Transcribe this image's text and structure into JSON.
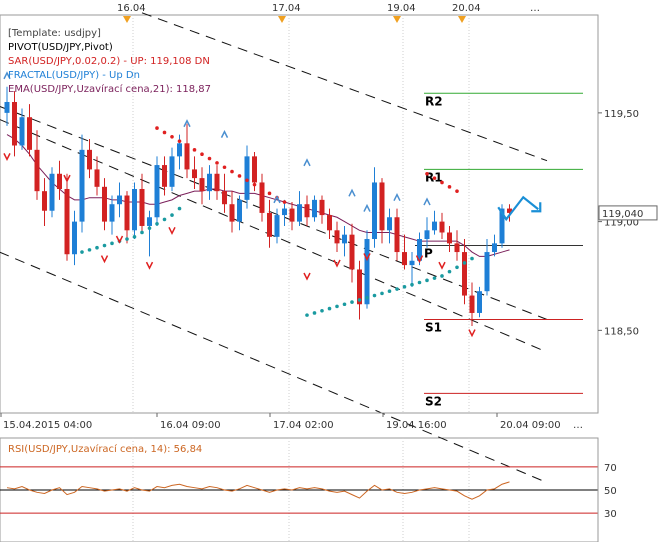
{
  "colors": {
    "up": "#1e7fd6",
    "down": "#d22222",
    "ema": "#7a1f5a",
    "sar": "#e02020",
    "sar_support": "#1a9aa0",
    "fractal_up": "#4a8fd0",
    "fractal_down": "#e02020",
    "pivot_resist": "#33aa33",
    "pivot_support": "#cc2222",
    "rsi_line": "#cc6622",
    "rsi_level": "#cc2222",
    "axis_text": "#333333",
    "arrow": "#1a8fd6"
  },
  "legend": {
    "template": "[Template: usdjpy]",
    "pivot": "PIVOT(USD/JPY,Pivot)",
    "sar": "SAR(USD/JPY,0.02,0.2) - UP: 119,108 DN",
    "fractal": "FRACTAL(USD/JPY) - Up Dn",
    "ema": "EMA(USD/JPY,Uzavírací cena,21): 118,87"
  },
  "rsi_legend": "RSI(USD/JPY,Uzavírací cena, 14): 56,84",
  "top_dates": [
    "16.04",
    "17.04",
    "19.04",
    "20.04"
  ],
  "bottom_dates": [
    "15.04.2015 04:00",
    "16.04 09:00",
    "17.04 02:00",
    "19.04 16:00",
    "20.04 09:00"
  ],
  "price_ticks": [
    "119,50",
    "119,00",
    "118,50"
  ],
  "current_price": "119,040",
  "pivot_labels": {
    "r2": "R2",
    "r1": "R1",
    "p": "P",
    "s1": "S1",
    "s2": "S2"
  },
  "rsi_ticks": [
    "70",
    "50",
    "30"
  ],
  "chart_data": {
    "type": "candlestick",
    "symbol": "USD/JPY",
    "ylim": [
      118.12,
      119.95
    ],
    "yticks": [
      119.5,
      119.0,
      118.5
    ],
    "pivot_levels": {
      "R2": 119.59,
      "R1": 119.24,
      "P": 118.89,
      "S1": 118.55,
      "S2": 118.21
    },
    "last_price": 119.04,
    "ema_last": 118.87,
    "rsi": {
      "ylim": [
        5,
        95
      ],
      "levels": [
        70,
        50,
        30
      ],
      "last": 56.84
    },
    "candles": [
      [
        119.5,
        119.62,
        119.44,
        119.55
      ],
      [
        119.55,
        119.6,
        119.3,
        119.35
      ],
      [
        119.35,
        119.52,
        119.33,
        119.48
      ],
      [
        119.48,
        119.54,
        119.3,
        119.33
      ],
      [
        119.33,
        119.42,
        119.1,
        119.14
      ],
      [
        119.14,
        119.2,
        118.98,
        119.05
      ],
      [
        119.05,
        119.25,
        119.02,
        119.22
      ],
      [
        119.22,
        119.28,
        119.1,
        119.15
      ],
      [
        119.15,
        119.22,
        118.82,
        118.85
      ],
      [
        118.85,
        119.05,
        118.8,
        119.0
      ],
      [
        119.0,
        119.4,
        118.95,
        119.33
      ],
      [
        119.33,
        119.38,
        119.2,
        119.24
      ],
      [
        119.24,
        119.3,
        119.12,
        119.16
      ],
      [
        119.16,
        119.2,
        118.96,
        119.0
      ],
      [
        119.0,
        119.12,
        118.94,
        119.08
      ],
      [
        119.08,
        119.18,
        119.02,
        119.12
      ],
      [
        119.12,
        119.14,
        118.9,
        118.96
      ],
      [
        118.96,
        119.18,
        118.92,
        119.15
      ],
      [
        119.15,
        119.22,
        118.95,
        118.98
      ],
      [
        118.98,
        119.05,
        118.84,
        119.02
      ],
      [
        119.02,
        119.3,
        118.98,
        119.26
      ],
      [
        119.26,
        119.3,
        119.12,
        119.16
      ],
      [
        119.16,
        119.34,
        119.14,
        119.3
      ],
      [
        119.3,
        119.4,
        119.24,
        119.36
      ],
      [
        119.36,
        119.45,
        119.2,
        119.24
      ],
      [
        119.24,
        119.3,
        119.15,
        119.2
      ],
      [
        119.2,
        119.25,
        119.08,
        119.14
      ],
      [
        119.14,
        119.26,
        119.1,
        119.22
      ],
      [
        119.22,
        119.26,
        119.1,
        119.14
      ],
      [
        119.14,
        119.22,
        119.04,
        119.08
      ],
      [
        119.08,
        119.14,
        118.95,
        119.0
      ],
      [
        119.0,
        119.12,
        118.96,
        119.1
      ],
      [
        119.1,
        119.35,
        119.06,
        119.3
      ],
      [
        119.3,
        119.32,
        119.14,
        119.18
      ],
      [
        119.18,
        119.22,
        119.0,
        119.04
      ],
      [
        119.04,
        119.1,
        118.88,
        118.93
      ],
      [
        118.93,
        119.06,
        118.9,
        119.03
      ],
      [
        119.03,
        119.1,
        118.98,
        119.06
      ],
      [
        119.06,
        119.09,
        118.96,
        119.0
      ],
      [
        119.0,
        119.14,
        118.98,
        119.08
      ],
      [
        119.08,
        119.12,
        118.98,
        119.02
      ],
      [
        119.02,
        119.12,
        119.0,
        119.1
      ],
      [
        119.1,
        119.12,
        118.99,
        119.03
      ],
      [
        119.03,
        119.06,
        118.92,
        118.96
      ],
      [
        118.96,
        119.0,
        118.86,
        118.9
      ],
      [
        118.9,
        118.98,
        118.84,
        118.94
      ],
      [
        118.94,
        118.99,
        118.72,
        118.78
      ],
      [
        118.78,
        118.82,
        118.55,
        118.62
      ],
      [
        118.62,
        118.96,
        118.6,
        118.92
      ],
      [
        118.92,
        119.25,
        118.88,
        119.18
      ],
      [
        119.18,
        119.2,
        118.9,
        118.96
      ],
      [
        118.96,
        119.06,
        118.9,
        119.02
      ],
      [
        119.02,
        119.06,
        118.82,
        118.86
      ],
      [
        118.86,
        118.94,
        118.78,
        118.8
      ],
      [
        118.8,
        118.86,
        118.7,
        118.82
      ],
      [
        118.82,
        118.95,
        118.8,
        118.92
      ],
      [
        118.92,
        119.02,
        118.88,
        118.96
      ],
      [
        118.96,
        119.05,
        118.94,
        119.0
      ],
      [
        119.0,
        119.04,
        118.92,
        118.95
      ],
      [
        118.95,
        118.98,
        118.86,
        118.9
      ],
      [
        118.9,
        118.96,
        118.82,
        118.86
      ],
      [
        118.86,
        118.92,
        118.62,
        118.66
      ],
      [
        118.66,
        118.72,
        118.52,
        118.58
      ],
      [
        118.58,
        118.7,
        118.56,
        118.68
      ],
      [
        118.68,
        118.92,
        118.66,
        118.86
      ],
      [
        118.86,
        118.94,
        118.84,
        118.9
      ],
      [
        118.9,
        119.08,
        118.88,
        119.06
      ],
      [
        119.06,
        119.08,
        119.0,
        119.04
      ]
    ],
    "ema": [
      119.4,
      119.38,
      119.35,
      119.31,
      119.26,
      119.22,
      119.18,
      119.15,
      119.12,
      119.1,
      119.1,
      119.11,
      119.11,
      119.11,
      119.1,
      119.1,
      119.09,
      119.09,
      119.09,
      119.08,
      119.08,
      119.09,
      119.1,
      119.12,
      119.13,
      119.14,
      119.14,
      119.15,
      119.15,
      119.14,
      119.14,
      119.13,
      119.13,
      119.13,
      119.12,
      119.11,
      119.1,
      119.09,
      119.08,
      119.07,
      119.06,
      119.05,
      119.04,
      119.03,
      119.02,
      119.0,
      118.98,
      118.96,
      118.95,
      118.95,
      118.95,
      118.95,
      118.94,
      118.93,
      118.92,
      118.91,
      118.91,
      118.91,
      118.91,
      118.91,
      118.91,
      118.89,
      118.86,
      118.84,
      118.84,
      118.85,
      118.86,
      118.87
    ],
    "sar_above": [
      [
        20,
        119.43
      ],
      [
        21,
        119.41
      ],
      [
        22,
        119.39
      ],
      [
        23,
        119.37
      ],
      [
        24,
        119.35
      ],
      [
        25,
        119.33
      ],
      [
        26,
        119.31
      ],
      [
        27,
        119.29
      ],
      [
        28,
        119.27
      ],
      [
        29,
        119.25
      ],
      [
        30,
        119.23
      ],
      [
        31,
        119.21
      ],
      [
        32,
        119.19
      ],
      [
        33,
        119.17
      ],
      [
        34,
        119.15
      ],
      [
        35,
        119.13
      ],
      [
        36,
        119.11
      ],
      [
        37,
        119.09
      ],
      [
        56,
        119.22
      ],
      [
        57,
        119.2
      ],
      [
        58,
        119.18
      ],
      [
        59,
        119.16
      ],
      [
        60,
        119.14
      ]
    ],
    "sar_below": [
      [
        10,
        118.86
      ],
      [
        11,
        118.87
      ],
      [
        12,
        118.88
      ],
      [
        13,
        118.89
      ],
      [
        14,
        118.9
      ],
      [
        15,
        118.91
      ],
      [
        16,
        118.92
      ],
      [
        17,
        118.93
      ],
      [
        18,
        118.95
      ],
      [
        19,
        118.97
      ],
      [
        20,
        118.99
      ],
      [
        21,
        119.01
      ],
      [
        22,
        119.03
      ],
      [
        23,
        119.06
      ],
      [
        40,
        118.57
      ],
      [
        41,
        118.58
      ],
      [
        42,
        118.59
      ],
      [
        43,
        118.6
      ],
      [
        44,
        118.61
      ],
      [
        45,
        118.62
      ],
      [
        46,
        118.63
      ],
      [
        47,
        118.64
      ],
      [
        48,
        118.65
      ],
      [
        49,
        118.66
      ],
      [
        50,
        118.67
      ],
      [
        51,
        118.68
      ],
      [
        52,
        118.69
      ],
      [
        53,
        118.7
      ],
      [
        54,
        118.71
      ],
      [
        55,
        118.72
      ],
      [
        56,
        118.73
      ],
      [
        57,
        118.74
      ],
      [
        58,
        118.75
      ],
      [
        59,
        118.77
      ],
      [
        60,
        118.79
      ],
      [
        61,
        118.81
      ],
      [
        62,
        118.83
      ]
    ],
    "fractals_up": [
      [
        0,
        119.67
      ],
      [
        24,
        119.45
      ],
      [
        29,
        119.4
      ],
      [
        36,
        119.1
      ],
      [
        40,
        119.27
      ],
      [
        46,
        119.13
      ],
      [
        48,
        119.06
      ],
      [
        52,
        119.11
      ],
      [
        56,
        119.09
      ]
    ],
    "fractals_down": [
      [
        0,
        119.3
      ],
      [
        8,
        119.2
      ],
      [
        13,
        118.83
      ],
      [
        15,
        118.92
      ],
      [
        19,
        118.8
      ],
      [
        22,
        118.96
      ],
      [
        40,
        118.75
      ],
      [
        44,
        118.81
      ],
      [
        48,
        118.84
      ],
      [
        55,
        118.83
      ],
      [
        58,
        118.8
      ],
      [
        62,
        118.49
      ]
    ],
    "channel_lines": [
      {
        "from": [
          -1,
          119.53
        ],
        "to": [
          72,
          118.55
        ]
      },
      {
        "from": [
          -1,
          119.47
        ],
        "to": [
          72,
          118.4
        ]
      },
      {
        "from": [
          -1,
          118.86
        ],
        "to": [
          72,
          117.8
        ]
      },
      {
        "from": [
          18,
          119.96
        ],
        "to": [
          72,
          119.28
        ]
      }
    ],
    "forecast_arrow": [
      [
        65.5,
        119.02
      ],
      [
        68,
        119.14
      ]
    ],
    "rsi_values": [
      52,
      51,
      53,
      50,
      48,
      47,
      50,
      52,
      46,
      48,
      53,
      52,
      51,
      49,
      50,
      51,
      49,
      52,
      50,
      49,
      53,
      52,
      54,
      55,
      53,
      52,
      51,
      53,
      52,
      50,
      49,
      51,
      54,
      52,
      50,
      48,
      50,
      51,
      50,
      52,
      51,
      52,
      51,
      49,
      48,
      49,
      46,
      43,
      49,
      54,
      50,
      51,
      48,
      47,
      48,
      50,
      51,
      52,
      51,
      50,
      49,
      45,
      42,
      45,
      50,
      51,
      55,
      57
    ]
  }
}
